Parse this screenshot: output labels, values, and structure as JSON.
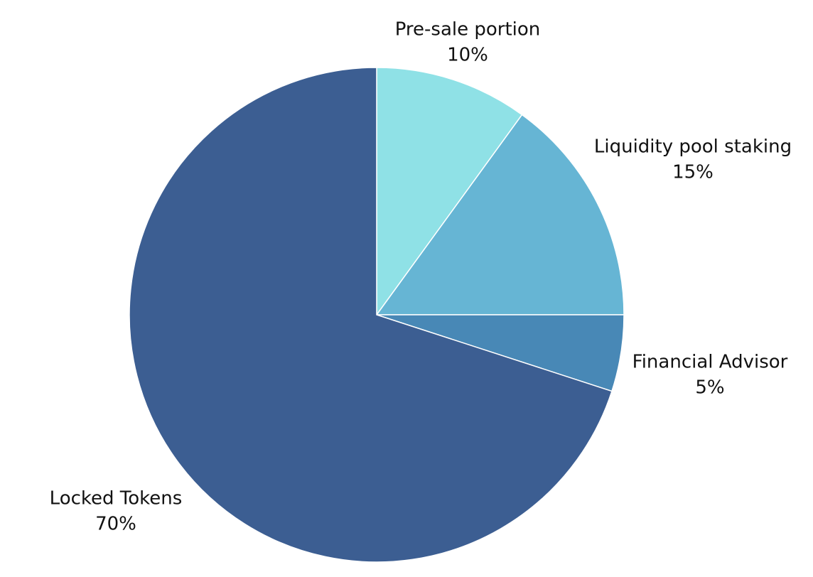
{
  "chart_data": {
    "type": "pie",
    "title": "",
    "slices": [
      {
        "label": "Pre-sale portion",
        "value": 10,
        "value_label": "10%",
        "color": "#8fe1e6"
      },
      {
        "label": "Liquidity pool staking",
        "value": 15,
        "value_label": "15%",
        "color": "#66b5d4"
      },
      {
        "label": "Financial Advisor",
        "value": 5,
        "value_label": "5%",
        "color": "#4888b6"
      },
      {
        "label": "Locked Tokens",
        "value": 70,
        "value_label": "70%",
        "color": "#3c5e92"
      }
    ],
    "start_angle": "12 o'clock",
    "direction": "clockwise",
    "legend": "none"
  }
}
